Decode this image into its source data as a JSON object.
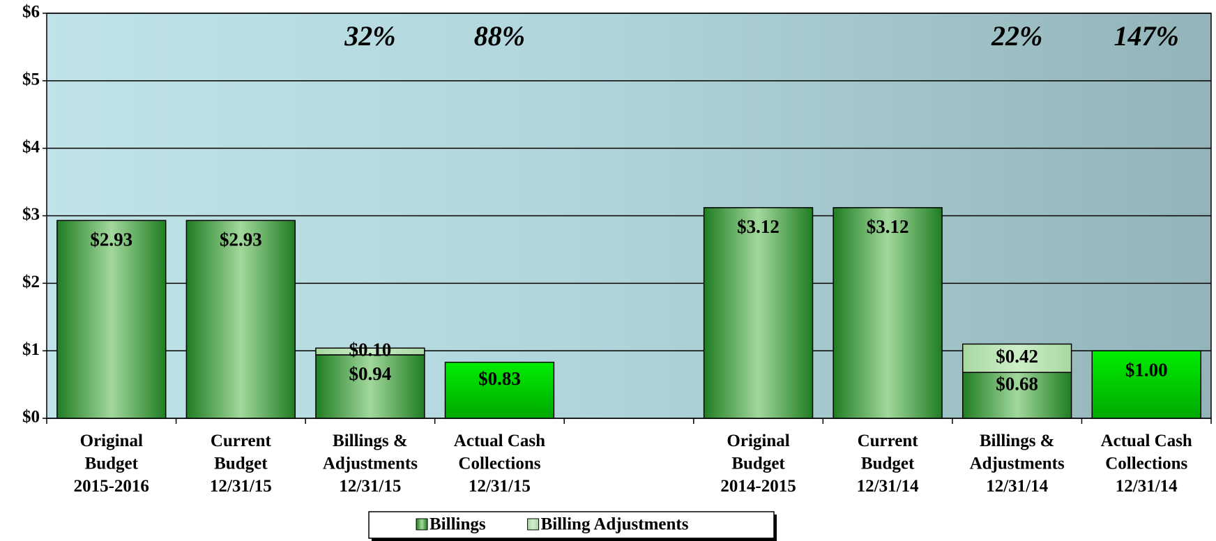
{
  "chart_data": {
    "type": "stacked_bar",
    "categories": [
      "Original\nBudget\n2015-2016",
      "Current\nBudget\n12/31/15",
      "Billings &\nAdjustments\n12/31/15",
      "Actual Cash\nCollections\n12/31/15",
      null,
      "Original\nBudget\n2014-2015",
      "Current\nBudget\n12/31/14",
      "Billings &\nAdjustments\n12/31/14",
      "Actual Cash\nCollections\n12/31/14"
    ],
    "series": [
      {
        "name": "Billings",
        "color": "#a2d89c",
        "edge_color": "#1f7d22",
        "highlight": {
          "indices": [
            3,
            8
          ],
          "color": "#00ee00",
          "edge_color": "#00a800"
        },
        "values": [
          2.93,
          2.93,
          0.94,
          0.83,
          null,
          3.12,
          3.12,
          0.68,
          1.0
        ],
        "value_labels": [
          "$2.93",
          "$2.93",
          "$0.94",
          "$0.83",
          null,
          "$3.12",
          "$3.12",
          "$0.68",
          "$1.00"
        ]
      },
      {
        "name": "Billing Adjustments",
        "color": "#cdeec8",
        "edge_color": "#a8d8a2",
        "values": [
          null,
          null,
          0.1,
          null,
          null,
          null,
          null,
          0.42,
          null
        ],
        "value_labels": [
          null,
          null,
          "$0.10",
          null,
          null,
          null,
          null,
          "$0.42",
          null
        ]
      }
    ],
    "annotations": [
      {
        "text": "32%",
        "at": 2
      },
      {
        "text": "88%",
        "at": 3
      },
      {
        "text": "22%",
        "at": 7
      },
      {
        "text": "147%",
        "at": 8
      }
    ],
    "ylim": [
      0,
      6
    ],
    "yticks": [
      {
        "value": 0,
        "label": "$0"
      },
      {
        "value": 1,
        "label": "$1"
      },
      {
        "value": 2,
        "label": "$2"
      },
      {
        "value": 3,
        "label": "$3"
      },
      {
        "value": 4,
        "label": "$4"
      },
      {
        "value": 5,
        "label": "$5"
      },
      {
        "value": 6,
        "label": "$6"
      }
    ],
    "grid": true,
    "legend": "bottom"
  }
}
